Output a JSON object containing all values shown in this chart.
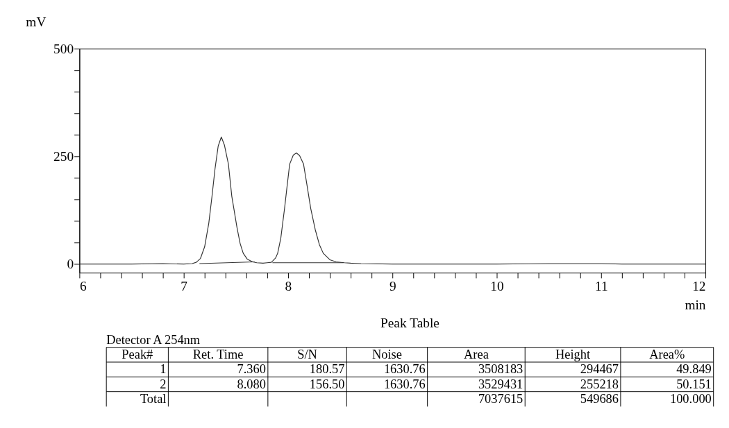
{
  "chart_data": [
    {
      "type": "line",
      "xlabel": "min",
      "ylabel": "mV",
      "xlim": [
        6,
        12
      ],
      "ylim": [
        -20,
        500
      ],
      "grid": false,
      "xticks": [
        6,
        {
          "value": 6.2,
          "label": null
        },
        {
          "value": 6.4,
          "label": null
        },
        {
          "value": 6.6,
          "label": null
        },
        {
          "value": 6.8,
          "label": null
        },
        7,
        {
          "value": 7.2,
          "label": null
        },
        {
          "value": 7.4,
          "label": null
        },
        {
          "value": 7.6,
          "label": null
        },
        {
          "value": 7.8,
          "label": null
        },
        8,
        {
          "value": 8.2,
          "label": null
        },
        {
          "value": 8.4,
          "label": null
        },
        {
          "value": 8.6,
          "label": null
        },
        {
          "value": 8.8,
          "label": null
        },
        9,
        {
          "value": 9.2,
          "label": null
        },
        {
          "value": 9.4,
          "label": null
        },
        {
          "value": 9.6,
          "label": null
        },
        {
          "value": 9.8,
          "label": null
        },
        10,
        {
          "value": 10.2,
          "label": null
        },
        {
          "value": 10.4,
          "label": null
        },
        {
          "value": 10.6,
          "label": null
        },
        {
          "value": 10.8,
          "label": null
        },
        11,
        {
          "value": 11.2,
          "label": null
        },
        {
          "value": 11.4,
          "label": null
        },
        {
          "value": 11.6,
          "label": null
        },
        {
          "value": 11.8,
          "label": null
        },
        12
      ],
      "yticks": [
        0,
        {
          "value": 50,
          "label": null
        },
        {
          "value": 100,
          "label": null
        },
        {
          "value": 150,
          "label": null
        },
        {
          "value": 200,
          "label": null
        },
        250,
        {
          "value": 300,
          "label": null
        },
        {
          "value": 350,
          "label": null
        },
        {
          "value": 400,
          "label": null
        },
        {
          "value": 450,
          "label": null
        },
        500
      ],
      "series": [
        {
          "color": "#333333",
          "x": [
            6.0,
            6.5,
            6.8,
            7.0,
            7.08,
            7.12,
            7.16,
            7.2,
            7.24,
            7.27,
            7.3,
            7.33,
            7.36,
            7.39,
            7.428,
            7.46,
            7.48,
            7.51,
            7.54,
            7.57,
            7.61,
            7.66,
            7.7,
            7.76,
            7.8,
            7.84,
            7.88,
            7.9,
            7.93,
            7.966,
            7.99,
            8.015,
            8.05,
            8.08,
            8.11,
            8.148,
            8.18,
            8.217,
            8.26,
            8.3,
            8.337,
            8.4,
            8.46,
            8.54,
            8.6,
            8.7,
            9.0,
            9.5,
            10.0,
            10.5,
            11.0,
            11.2,
            12.0
          ],
          "values": [
            0,
            0,
            1,
            0,
            1,
            4,
            13,
            40,
            95,
            156,
            222,
            274,
            295,
            276,
            232,
            158,
            129,
            85,
            48,
            25,
            11,
            5,
            3,
            2,
            3,
            4,
            14,
            25,
            60,
            129,
            180,
            232,
            253,
            258,
            252,
            232,
            185,
            129,
            80,
            45,
            25,
            10,
            5,
            3,
            2,
            1,
            0,
            0,
            0,
            1,
            1,
            0,
            0
          ]
        },
        {
          "color": "#333333",
          "x": [
            7.15,
            7.68
          ],
          "values": [
            1,
            5
          ]
        },
        {
          "color": "#333333",
          "x": [
            7.85,
            8.53
          ],
          "values": [
            3,
            3
          ]
        }
      ]
    },
    {
      "type": "other",
      "title": "Peak Table",
      "subtitle": "Detector A 254nm",
      "annotations": [
        "Peak#",
        "Ret. Time",
        "S/N",
        "Noise",
        "Area",
        "Height",
        "Area%",
        "1",
        "7.360",
        "180.57",
        "1630.76",
        "3508183",
        "294467",
        "49.849",
        "2",
        "8.080",
        "156.50",
        "1630.76",
        "3529431",
        "255218",
        "50.151",
        "Total",
        null,
        null,
        null,
        "7037615",
        "549686",
        "100.000"
      ]
    }
  ]
}
